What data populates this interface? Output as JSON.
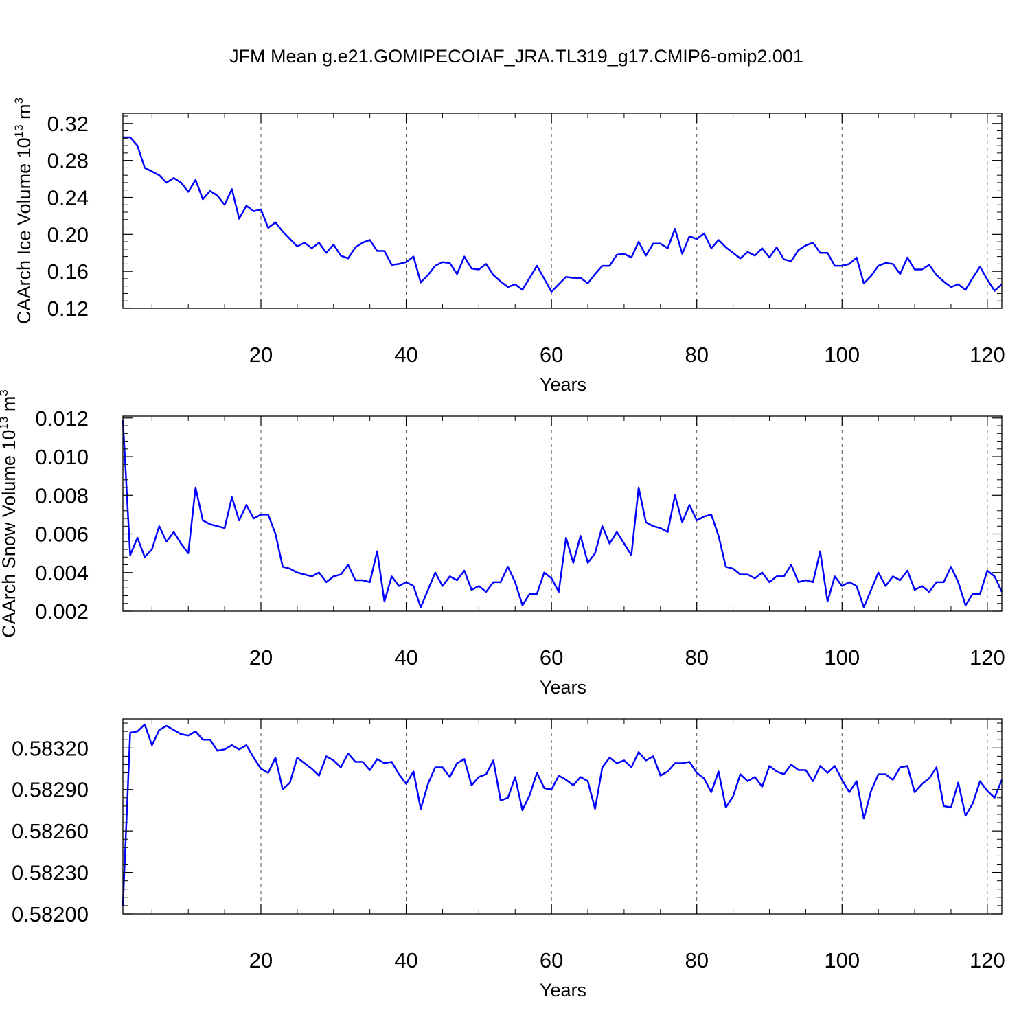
{
  "title": "JFM Mean g.e21.GOMIPECOIAF_JRA.TL319_g17.CMIP6-omip2.001",
  "chart_data": [
    {
      "type": "line",
      "xlabel": "Years",
      "ylabel": "CAArch Ice Volume 10",
      "ylabel_exp": "13",
      "ylabel_unit": " m",
      "ylabel_unit_exp": "3",
      "xlim": [
        1,
        122
      ],
      "ylim": [
        0.12,
        0.331
      ],
      "xticks": [
        20,
        40,
        60,
        80,
        100,
        120
      ],
      "xtick_labels": [
        "20",
        "40",
        "60",
        "80",
        "100",
        "120"
      ],
      "yticks": [
        0.12,
        0.16,
        0.2,
        0.24,
        0.28,
        0.32
      ],
      "ytick_labels": [
        "0.12",
        "0.16",
        "0.20",
        "0.24",
        "0.28",
        "0.32"
      ],
      "grid": "x-dashed",
      "series": [
        {
          "color": "#0000ff",
          "x_start": 1,
          "values": [
            0.305,
            0.305,
            0.296,
            0.272,
            0.268,
            0.264,
            0.256,
            0.261,
            0.256,
            0.246,
            0.259,
            0.238,
            0.247,
            0.242,
            0.232,
            0.249,
            0.217,
            0.231,
            0.225,
            0.227,
            0.207,
            0.213,
            0.203,
            0.195,
            0.187,
            0.191,
            0.185,
            0.191,
            0.18,
            0.189,
            0.177,
            0.174,
            0.186,
            0.191,
            0.194,
            0.182,
            0.182,
            0.167,
            0.168,
            0.17,
            0.176,
            0.148,
            0.156,
            0.166,
            0.17,
            0.169,
            0.157,
            0.176,
            0.163,
            0.162,
            0.168,
            0.156,
            0.149,
            0.143,
            0.146,
            0.14,
            0.153,
            0.166,
            0.152,
            0.138,
            0.146,
            0.154,
            0.153,
            0.153,
            0.147,
            0.157,
            0.166,
            0.166,
            0.178,
            0.179,
            0.175,
            0.192,
            0.177,
            0.19,
            0.19,
            0.185,
            0.206,
            0.179,
            0.198,
            0.195,
            0.201,
            0.185,
            0.194,
            0.186,
            0.18,
            0.174,
            0.181,
            0.177,
            0.185,
            0.175,
            0.186,
            0.173,
            0.171,
            0.183,
            0.188,
            0.191,
            0.18,
            0.18,
            0.166,
            0.166,
            0.168,
            0.175,
            0.147,
            0.155,
            0.166,
            0.169,
            0.168,
            0.157,
            0.175,
            0.162,
            0.162,
            0.167,
            0.156,
            0.149,
            0.143,
            0.146,
            0.14,
            0.153,
            0.165,
            0.151,
            0.139,
            0.146
          ]
        }
      ]
    },
    {
      "type": "line",
      "xlabel": "Years",
      "ylabel": "CAArch Snow Volume 10",
      "ylabel_exp": "13",
      "ylabel_unit": " m",
      "ylabel_unit_exp": "3",
      "xlim": [
        1,
        122
      ],
      "ylim": [
        0.002,
        0.0121
      ],
      "xticks": [
        20,
        40,
        60,
        80,
        100,
        120
      ],
      "xtick_labels": [
        "20",
        "40",
        "60",
        "80",
        "100",
        "120"
      ],
      "yticks": [
        0.002,
        0.004,
        0.006,
        0.008,
        0.01,
        0.012
      ],
      "ytick_labels": [
        "0.002",
        "0.004",
        "0.006",
        "0.008",
        "0.010",
        "0.012"
      ],
      "grid": "x-dashed",
      "series": [
        {
          "color": "#0000ff",
          "x_start": 1,
          "values": [
            0.0119,
            0.0049,
            0.0058,
            0.0048,
            0.0052,
            0.0064,
            0.0056,
            0.0061,
            0.0055,
            0.005,
            0.0084,
            0.0067,
            0.0065,
            0.0064,
            0.0063,
            0.0079,
            0.0067,
            0.0075,
            0.0068,
            0.007,
            0.007,
            0.006,
            0.0043,
            0.0042,
            0.004,
            0.0039,
            0.0038,
            0.004,
            0.0035,
            0.0038,
            0.0039,
            0.0044,
            0.0036,
            0.0036,
            0.0035,
            0.0051,
            0.0025,
            0.0038,
            0.0033,
            0.0035,
            0.0033,
            0.0022,
            0.0031,
            0.004,
            0.0033,
            0.0038,
            0.0036,
            0.0041,
            0.0031,
            0.0033,
            0.003,
            0.0035,
            0.0035,
            0.0043,
            0.0035,
            0.0023,
            0.0029,
            0.0029,
            0.004,
            0.0037,
            0.003,
            0.0058,
            0.0045,
            0.0059,
            0.0045,
            0.005,
            0.0064,
            0.0055,
            0.0061,
            0.0055,
            0.0049,
            0.0084,
            0.0066,
            0.0064,
            0.0063,
            0.0061,
            0.008,
            0.0066,
            0.0075,
            0.0067,
            0.0069,
            0.007,
            0.0059,
            0.0043,
            0.0042,
            0.0039,
            0.0039,
            0.0037,
            0.004,
            0.0035,
            0.0038,
            0.0038,
            0.0044,
            0.0035,
            0.0036,
            0.0035,
            0.0051,
            0.0025,
            0.0038,
            0.0033,
            0.0035,
            0.0033,
            0.0022,
            0.0031,
            0.004,
            0.0033,
            0.0038,
            0.0036,
            0.0041,
            0.0031,
            0.0033,
            0.003,
            0.0035,
            0.0035,
            0.0043,
            0.0035,
            0.0023,
            0.0029,
            0.0029,
            0.0041,
            0.0038,
            0.003
          ]
        }
      ]
    },
    {
      "type": "line",
      "xlabel": "Years",
      "ylabel": "",
      "xlim": [
        1,
        122
      ],
      "ylim": [
        0.582,
        0.58341
      ],
      "xticks": [
        20,
        40,
        60,
        80,
        100,
        120
      ],
      "xtick_labels": [
        "20",
        "40",
        "60",
        "80",
        "100",
        "120"
      ],
      "yticks": [
        0.582,
        0.5823,
        0.5826,
        0.5829,
        0.5832
      ],
      "ytick_labels": [
        "0.58200",
        "0.58230",
        "0.58260",
        "0.58290",
        "0.58320"
      ],
      "grid": "x-dashed",
      "series": [
        {
          "color": "#0000ff",
          "x_start": 1,
          "values": [
            0.58206,
            0.58331,
            0.58332,
            0.58337,
            0.58322,
            0.58333,
            0.58336,
            0.58333,
            0.5833,
            0.58329,
            0.58332,
            0.58326,
            0.58326,
            0.58318,
            0.58319,
            0.58322,
            0.58319,
            0.58322,
            0.58313,
            0.58305,
            0.58302,
            0.58313,
            0.5829,
            0.58295,
            0.58313,
            0.58309,
            0.58305,
            0.583,
            0.58314,
            0.58311,
            0.58306,
            0.58316,
            0.5831,
            0.5831,
            0.58304,
            0.58312,
            0.58309,
            0.5831,
            0.58301,
            0.58294,
            0.58303,
            0.58276,
            0.58294,
            0.58306,
            0.58306,
            0.58299,
            0.58309,
            0.58312,
            0.58293,
            0.58299,
            0.58301,
            0.58311,
            0.58282,
            0.58284,
            0.58299,
            0.58275,
            0.58286,
            0.58302,
            0.58291,
            0.5829,
            0.583,
            0.58297,
            0.58293,
            0.58299,
            0.58296,
            0.58276,
            0.58306,
            0.58313,
            0.58309,
            0.58311,
            0.58306,
            0.58317,
            0.58311,
            0.58314,
            0.583,
            0.58303,
            0.58309,
            0.58309,
            0.5831,
            0.58302,
            0.58298,
            0.58288,
            0.58303,
            0.58277,
            0.58285,
            0.58301,
            0.58296,
            0.58299,
            0.58292,
            0.58307,
            0.58303,
            0.58301,
            0.58308,
            0.58304,
            0.58304,
            0.58296,
            0.58307,
            0.58302,
            0.58307,
            0.58297,
            0.58288,
            0.58296,
            0.58269,
            0.58289,
            0.58301,
            0.58301,
            0.58297,
            0.58306,
            0.58307,
            0.58288,
            0.58294,
            0.58298,
            0.58306,
            0.58278,
            0.58277,
            0.58295,
            0.58271,
            0.5828,
            0.58296,
            0.58289,
            0.58284,
            0.58297
          ]
        }
      ]
    }
  ]
}
